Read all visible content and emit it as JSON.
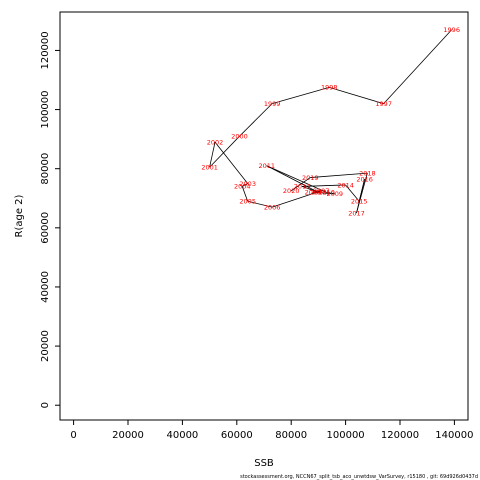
{
  "chart_data": {
    "type": "scatter",
    "xlabel": "SSB",
    "ylabel": "R(age 2)",
    "xlim": [
      -5000,
      145000
    ],
    "ylim": [
      -5000,
      133000
    ],
    "x_ticks": [
      0,
      20000,
      40000,
      60000,
      80000,
      100000,
      120000,
      140000
    ],
    "y_ticks": [
      0,
      20000,
      40000,
      60000,
      80000,
      100000,
      120000
    ],
    "grid": false,
    "line_color": "#000000",
    "label_color": "#ff0000",
    "points": [
      {
        "label": "1996",
        "x": 139000,
        "y": 127000
      },
      {
        "label": "1997",
        "x": 114000,
        "y": 102000
      },
      {
        "label": "1998",
        "x": 94000,
        "y": 107500
      },
      {
        "label": "1999",
        "x": 73000,
        "y": 102000
      },
      {
        "label": "2000",
        "x": 61000,
        "y": 91000
      },
      {
        "label": "2001",
        "x": 50000,
        "y": 80500
      },
      {
        "label": "2002",
        "x": 52000,
        "y": 89000
      },
      {
        "label": "2003",
        "x": 64000,
        "y": 75000
      },
      {
        "label": "2004",
        "x": 62000,
        "y": 74000
      },
      {
        "label": "2005",
        "x": 64000,
        "y": 69000
      },
      {
        "label": "2006",
        "x": 73000,
        "y": 67000
      },
      {
        "label": "2007",
        "x": 91000,
        "y": 72500
      },
      {
        "label": "2008",
        "x": 88000,
        "y": 72000
      },
      {
        "label": "2009",
        "x": 96000,
        "y": 71500
      },
      {
        "label": "2010",
        "x": 93000,
        "y": 72000
      },
      {
        "label": "2011",
        "x": 71000,
        "y": 81000
      },
      {
        "label": "2012",
        "x": 90000,
        "y": 72000
      },
      {
        "label": "2013",
        "x": 84000,
        "y": 74000
      },
      {
        "label": "2014",
        "x": 100000,
        "y": 74500
      },
      {
        "label": "2015",
        "x": 105000,
        "y": 69000
      },
      {
        "label": "2016",
        "x": 107000,
        "y": 76500
      },
      {
        "label": "2017",
        "x": 104000,
        "y": 65000
      },
      {
        "label": "2018",
        "x": 108000,
        "y": 78500
      },
      {
        "label": "2019",
        "x": 87000,
        "y": 77000
      },
      {
        "label": "2020",
        "x": 80000,
        "y": 72500
      }
    ]
  },
  "footer": "stockassessment.org, NCCN67_split_tsb_aco_unwtdsw_VarSurvey, r15180 , git: 69d926d0437d"
}
